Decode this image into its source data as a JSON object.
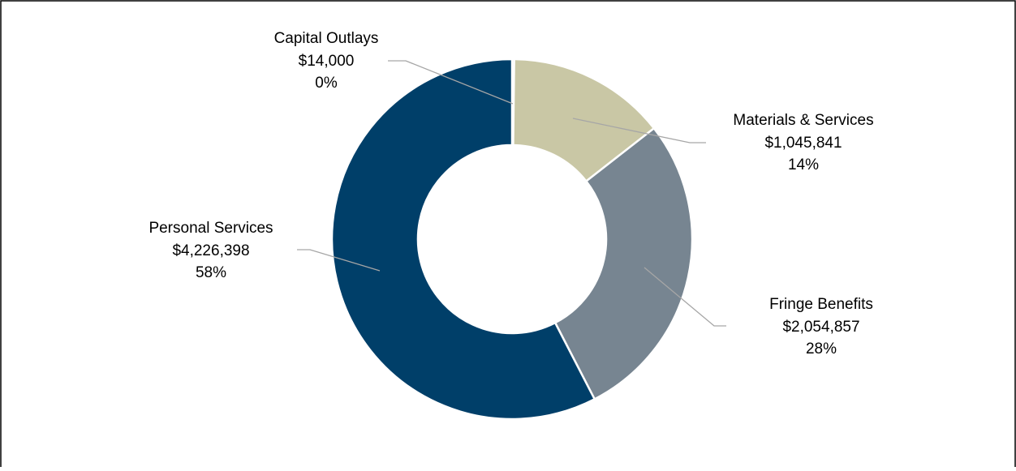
{
  "chart_data": {
    "type": "donut",
    "categories": [
      "Capital Outlays",
      "Materials & Services",
      "Fringe Benefits",
      "Personal Services"
    ],
    "values": [
      14000,
      1045841,
      2054857,
      4226398
    ],
    "value_labels": [
      "$14,000",
      "$1,045,841",
      "$2,054,857",
      "$4,226,398"
    ],
    "percent_labels": [
      "0%",
      "14%",
      "28%",
      "58%"
    ],
    "colors": [
      "#8c8c8c",
      "#c9c7a5",
      "#778591",
      "#003f69"
    ]
  }
}
